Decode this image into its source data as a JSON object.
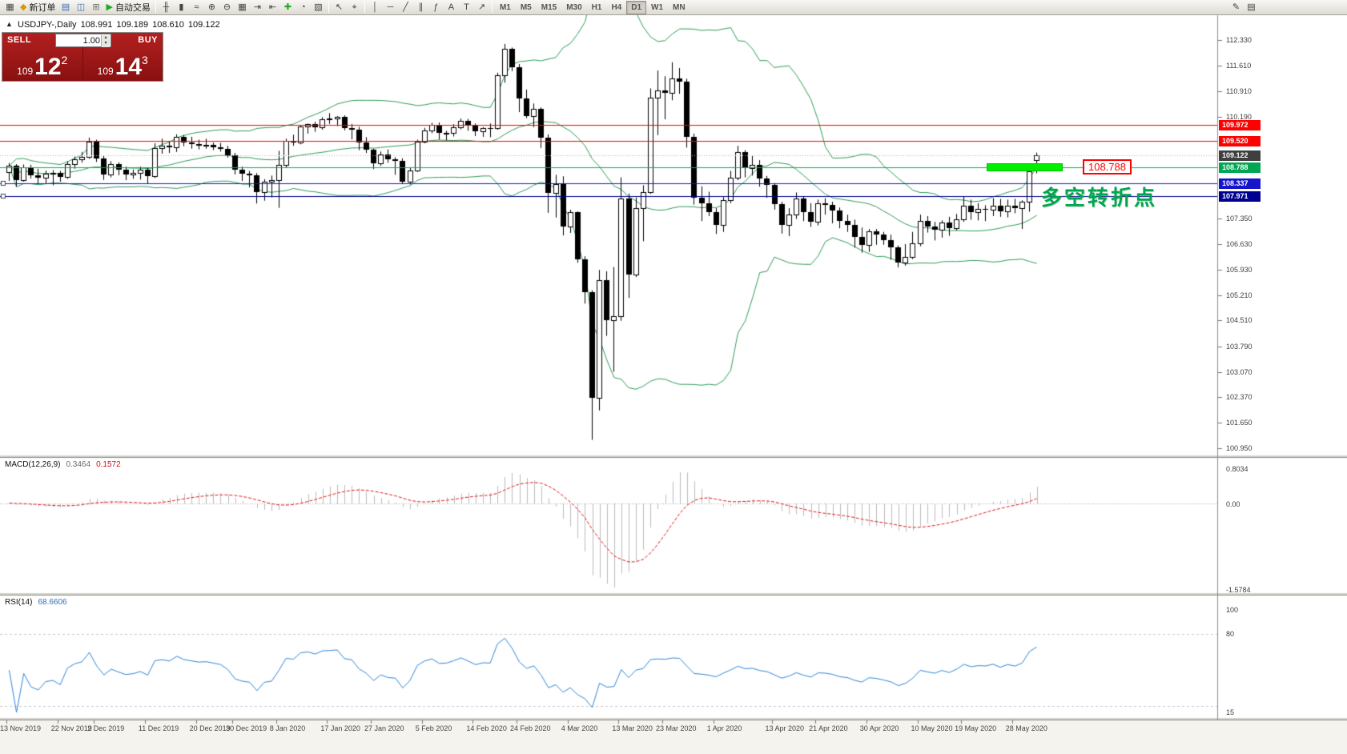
{
  "toolbar": {
    "left": [
      {
        "name": "new-chart",
        "glyph": "▦"
      },
      {
        "name": "new-order",
        "glyph": "◆",
        "color": "#d99a00",
        "label": "新订单"
      },
      {
        "name": "market-watch",
        "glyph": "▤",
        "color": "#3b6fb5"
      },
      {
        "name": "data-window",
        "glyph": "◫",
        "color": "#3b6fb5"
      },
      {
        "name": "navigator",
        "glyph": "⊞",
        "color": "#6d6d6d"
      },
      {
        "name": "auto-trading",
        "glyph": "▶",
        "color": "#1faa1f",
        "label": "自动交易"
      }
    ],
    "chart": [
      {
        "name": "bar-chart",
        "glyph": "╫"
      },
      {
        "name": "candlestick-chart",
        "glyph": "▮"
      },
      {
        "name": "line-chart",
        "glyph": "≈"
      },
      {
        "name": "zoom-in",
        "glyph": "⊕"
      },
      {
        "name": "zoom-out",
        "glyph": "⊖"
      },
      {
        "name": "tile-windows",
        "glyph": "▦"
      },
      {
        "name": "auto-scroll",
        "glyph": "⇥"
      },
      {
        "name": "chart-shift",
        "glyph": "⇤"
      },
      {
        "name": "indicators",
        "glyph": "✚",
        "color": "#1faa1f"
      },
      {
        "name": "periods",
        "glyph": "◔"
      },
      {
        "name": "templates",
        "glyph": "▧"
      }
    ],
    "cursor_tools": [
      {
        "name": "cursor",
        "glyph": "↖"
      },
      {
        "name": "crosshair",
        "glyph": "⌖"
      }
    ],
    "draw_tools": [
      {
        "name": "vertical-line",
        "glyph": "│"
      },
      {
        "name": "horizontal-line",
        "glyph": "─"
      },
      {
        "name": "trendline",
        "glyph": "╱"
      },
      {
        "name": "equidistant-channel",
        "glyph": "∥"
      },
      {
        "name": "fibonacci",
        "glyph": "ƒ"
      },
      {
        "name": "text",
        "glyph": "A"
      },
      {
        "name": "text-label",
        "glyph": "T"
      },
      {
        "name": "arrows",
        "glyph": "↗"
      }
    ],
    "timeframes": [
      "M1",
      "M5",
      "M15",
      "M30",
      "H1",
      "H4",
      "D1",
      "W1",
      "MN"
    ],
    "active_timeframe": "D1",
    "right": [
      {
        "name": "pencil",
        "glyph": "✎"
      },
      {
        "name": "notes",
        "glyph": "▤"
      }
    ]
  },
  "chart_header": {
    "icon": "▲",
    "symbol_period": "USDJPY-,Daily",
    "open": "108.991",
    "high": "109.189",
    "low": "108.610",
    "close": "109.122"
  },
  "trade_panel": {
    "sell_label": "SELL",
    "buy_label": "BUY",
    "volume": "1.00",
    "spinner_up": "▴",
    "spinner_down": "▾",
    "sell_price_small": "109",
    "sell_price_big": "12",
    "sell_price_sup": "2",
    "buy_price_small": "109",
    "buy_price_big": "14",
    "buy_price_sup": "3"
  },
  "objects": {
    "hlines": [
      {
        "price": 109.972,
        "color": "#ff0000",
        "tag_bg": "#ff0000"
      },
      {
        "price": 109.52,
        "color": "#ff0000",
        "tag_bg": "#ff0000"
      },
      {
        "price": 108.788,
        "color": "#00b14f",
        "tag_bg": "#00a651"
      },
      {
        "price": 108.337,
        "color": "#1515cc",
        "tag_bg": "#1515cc",
        "handles": true
      },
      {
        "price": 107.971,
        "color": "#000090",
        "tag_bg": "#000090",
        "handles": true
      }
    ],
    "highlight_bar": {
      "price": 108.788,
      "color": "#00ef00"
    },
    "price_label": {
      "text": "108.788",
      "color": "#ff0000"
    },
    "annotation": {
      "text": "多空转折点",
      "color": "#00a651"
    }
  },
  "price_scale": {
    "current": {
      "text": "109.122",
      "bg": "#3f3f3f"
    },
    "ticks": [
      "112.330",
      "111.610",
      "110.910",
      "110.190",
      "107.350",
      "106.630",
      "105.930",
      "105.210",
      "104.510",
      "103.790",
      "103.070",
      "102.370",
      "101.650",
      "100.950"
    ]
  },
  "indicators": {
    "macd": {
      "label": "MACD(12,26,9)",
      "value_main": "0.3464",
      "value_signal": "0.1572",
      "scale_max": "0.8034",
      "scale_zero": "0.00",
      "scale_min": "-1.5784",
      "fast": 12,
      "slow": 26,
      "signal": 9
    },
    "rsi": {
      "label": "RSI(14)",
      "value": "68.6606",
      "period": 14,
      "scale_labels": [
        "100",
        "80",
        "15"
      ],
      "scale_max": 100,
      "scale_min": 15,
      "levels": [
        80,
        20
      ]
    }
  },
  "chart_data": {
    "type": "candlestick",
    "title": "USDJPY-,Daily",
    "symbol": "USDJPY",
    "timeframe": "Daily",
    "bollinger": {
      "period": 20,
      "deviation": 2
    },
    "date_labels": [
      {
        "text": "13 Nov 2019",
        "index": 0
      },
      {
        "text": "22 Nov 2019",
        "index": 7
      },
      {
        "text": "2 Dec 2019",
        "index": 12
      },
      {
        "text": "11 Dec 2019",
        "index": 19
      },
      {
        "text": "20 Dec 2019",
        "index": 26
      },
      {
        "text": "30 Dec 2019",
        "index": 31
      },
      {
        "text": "8 Jan 2020",
        "index": 37
      },
      {
        "text": "17 Jan 2020",
        "index": 44
      },
      {
        "text": "27 Jan 2020",
        "index": 50
      },
      {
        "text": "5 Feb 2020",
        "index": 57
      },
      {
        "text": "14 Feb 2020",
        "index": 64
      },
      {
        "text": "24 Feb 2020",
        "index": 70
      },
      {
        "text": "4 Mar 2020",
        "index": 77
      },
      {
        "text": "13 Mar 2020",
        "index": 84
      },
      {
        "text": "23 Mar 2020",
        "index": 90
      },
      {
        "text": "1 Apr 2020",
        "index": 97
      },
      {
        "text": "13 Apr 2020",
        "index": 105
      },
      {
        "text": "21 Apr 2020",
        "index": 111
      },
      {
        "text": "30 Apr 2020",
        "index": 118
      },
      {
        "text": "10 May 2020",
        "index": 125
      },
      {
        "text": "19 May 2020",
        "index": 131
      },
      {
        "text": "28 May 2020",
        "index": 138
      }
    ],
    "candles": [
      [
        108.65,
        108.9,
        108.4,
        108.82
      ],
      [
        108.82,
        108.87,
        108.24,
        108.43
      ],
      [
        108.43,
        108.86,
        108.38,
        108.78
      ],
      [
        108.78,
        108.85,
        108.47,
        108.55
      ],
      [
        108.55,
        108.74,
        108.32,
        108.48
      ],
      [
        108.48,
        108.69,
        108.33,
        108.6
      ],
      [
        108.6,
        108.7,
        108.28,
        108.62
      ],
      [
        108.62,
        108.68,
        108.38,
        108.51
      ],
      [
        108.51,
        108.95,
        108.46,
        108.88
      ],
      [
        108.88,
        109.08,
        108.74,
        109.01
      ],
      [
        109.01,
        109.21,
        108.91,
        109.08
      ],
      [
        109.08,
        109.61,
        109.02,
        109.49
      ],
      [
        109.49,
        109.55,
        108.93,
        109.02
      ],
      [
        109.02,
        109.1,
        108.43,
        108.57
      ],
      [
        108.57,
        108.95,
        108.5,
        108.88
      ],
      [
        108.88,
        108.92,
        108.56,
        108.72
      ],
      [
        108.72,
        108.8,
        108.42,
        108.58
      ],
      [
        108.58,
        108.72,
        108.46,
        108.62
      ],
      [
        108.62,
        108.8,
        108.44,
        108.72
      ],
      [
        108.72,
        108.78,
        108.32,
        108.54
      ],
      [
        108.54,
        109.45,
        108.48,
        109.32
      ],
      [
        109.32,
        109.58,
        109.16,
        109.38
      ],
      [
        109.38,
        109.5,
        109.18,
        109.33
      ],
      [
        109.33,
        109.7,
        109.21,
        109.62
      ],
      [
        109.62,
        109.68,
        109.37,
        109.48
      ],
      [
        109.48,
        109.63,
        109.3,
        109.43
      ],
      [
        109.43,
        109.55,
        109.28,
        109.38
      ],
      [
        109.38,
        109.58,
        109.3,
        109.4
      ],
      [
        109.4,
        109.47,
        109.26,
        109.35
      ],
      [
        109.35,
        109.46,
        109.22,
        109.3
      ],
      [
        109.3,
        109.38,
        109.05,
        109.12
      ],
      [
        109.12,
        109.18,
        108.58,
        108.72
      ],
      [
        108.72,
        108.8,
        108.4,
        108.61
      ],
      [
        108.61,
        108.68,
        108.22,
        108.56
      ],
      [
        108.56,
        108.62,
        107.77,
        108.09
      ],
      [
        108.09,
        108.45,
        107.85,
        108.38
      ],
      [
        108.38,
        108.55,
        107.94,
        108.42
      ],
      [
        108.42,
        109.24,
        107.65,
        108.85
      ],
      [
        108.85,
        109.58,
        108.76,
        109.52
      ],
      [
        109.52,
        109.69,
        109.38,
        109.48
      ],
      [
        109.48,
        109.95,
        109.42,
        109.92
      ],
      [
        109.92,
        110.0,
        109.72,
        109.98
      ],
      [
        109.98,
        110.05,
        109.77,
        109.9
      ],
      [
        109.9,
        110.18,
        109.83,
        110.12
      ],
      [
        110.12,
        110.29,
        109.99,
        110.14
      ],
      [
        110.14,
        110.21,
        109.93,
        110.18
      ],
      [
        110.18,
        110.23,
        109.81,
        109.88
      ],
      [
        109.88,
        109.99,
        109.56,
        109.84
      ],
      [
        109.84,
        109.91,
        109.26,
        109.48
      ],
      [
        109.48,
        109.62,
        109.18,
        109.28
      ],
      [
        109.28,
        109.3,
        108.73,
        108.9
      ],
      [
        108.9,
        109.22,
        108.82,
        109.14
      ],
      [
        109.14,
        109.28,
        108.91,
        109.0
      ],
      [
        109.0,
        109.06,
        108.57,
        108.97
      ],
      [
        108.97,
        109.03,
        108.31,
        108.38
      ],
      [
        108.38,
        108.78,
        108.3,
        108.69
      ],
      [
        108.69,
        109.55,
        108.65,
        109.5
      ],
      [
        109.5,
        109.88,
        109.45,
        109.81
      ],
      [
        109.81,
        110.02,
        109.73,
        109.96
      ],
      [
        109.96,
        110.03,
        109.55,
        109.73
      ],
      [
        109.73,
        109.8,
        109.53,
        109.75
      ],
      [
        109.75,
        109.98,
        109.64,
        109.9
      ],
      [
        109.9,
        110.14,
        109.84,
        110.08
      ],
      [
        110.08,
        110.13,
        109.8,
        109.94
      ],
      [
        109.94,
        110.0,
        109.65,
        109.78
      ],
      [
        109.78,
        109.9,
        109.63,
        109.88
      ],
      [
        109.88,
        110.0,
        109.62,
        109.87
      ],
      [
        109.87,
        111.42,
        109.83,
        111.34
      ],
      [
        111.34,
        112.22,
        111.14,
        112.08
      ],
      [
        112.08,
        112.12,
        111.46,
        111.58
      ],
      [
        111.58,
        111.66,
        110.32,
        110.7
      ],
      [
        110.7,
        110.95,
        110.15,
        110.2
      ],
      [
        110.2,
        110.56,
        109.9,
        110.42
      ],
      [
        110.42,
        110.45,
        109.32,
        109.6
      ],
      [
        109.6,
        109.7,
        107.51,
        108.07
      ],
      [
        108.07,
        108.57,
        107.38,
        108.32
      ],
      [
        108.32,
        108.53,
        106.88,
        107.13
      ],
      [
        107.13,
        107.6,
        106.95,
        107.52
      ],
      [
        107.52,
        107.55,
        106.12,
        106.22
      ],
      [
        106.22,
        106.3,
        104.98,
        105.3
      ],
      [
        105.3,
        105.35,
        101.18,
        102.36
      ],
      [
        102.36,
        105.92,
        102.0,
        105.64
      ],
      [
        105.64,
        105.88,
        104.08,
        104.52
      ],
      [
        104.52,
        106.0,
        103.08,
        104.62
      ],
      [
        104.62,
        108.5,
        104.5,
        107.9
      ],
      [
        107.9,
        108.05,
        105.14,
        105.8
      ],
      [
        105.8,
        107.94,
        105.72,
        107.65
      ],
      [
        107.65,
        108.28,
        106.72,
        108.08
      ],
      [
        108.08,
        110.98,
        108.04,
        110.72
      ],
      [
        110.72,
        111.48,
        109.68,
        110.93
      ],
      [
        110.93,
        111.32,
        110.12,
        110.85
      ],
      [
        110.85,
        111.71,
        110.65,
        111.25
      ],
      [
        111.25,
        111.55,
        110.83,
        111.18
      ],
      [
        111.18,
        111.25,
        109.33,
        109.62
      ],
      [
        109.62,
        109.72,
        107.74,
        107.94
      ],
      [
        107.94,
        108.25,
        107.28,
        107.78
      ],
      [
        107.78,
        108.1,
        107.42,
        107.54
      ],
      [
        107.54,
        107.64,
        106.92,
        107.18
      ],
      [
        107.18,
        107.95,
        106.98,
        107.86
      ],
      [
        107.86,
        108.68,
        107.78,
        108.48
      ],
      [
        108.48,
        109.38,
        108.42,
        109.2
      ],
      [
        109.2,
        109.26,
        108.5,
        108.76
      ],
      [
        108.76,
        109.1,
        108.55,
        108.84
      ],
      [
        108.84,
        108.98,
        108.24,
        108.46
      ],
      [
        108.46,
        108.54,
        107.93,
        108.28
      ],
      [
        108.28,
        108.34,
        107.6,
        107.76
      ],
      [
        107.76,
        107.82,
        106.93,
        107.18
      ],
      [
        107.18,
        107.64,
        106.86,
        107.46
      ],
      [
        107.46,
        108.08,
        107.34,
        107.92
      ],
      [
        107.92,
        107.98,
        107.28,
        107.54
      ],
      [
        107.54,
        107.78,
        107.12,
        107.26
      ],
      [
        107.26,
        107.88,
        107.16,
        107.78
      ],
      [
        107.78,
        107.92,
        107.46,
        107.74
      ],
      [
        107.74,
        107.82,
        107.22,
        107.58
      ],
      [
        107.58,
        107.66,
        107.08,
        107.28
      ],
      [
        107.28,
        107.46,
        106.98,
        107.18
      ],
      [
        107.18,
        107.32,
        106.54,
        106.84
      ],
      [
        106.84,
        107.1,
        106.4,
        106.62
      ],
      [
        106.62,
        107.06,
        106.42,
        107.0
      ],
      [
        107.0,
        107.06,
        106.62,
        106.91
      ],
      [
        106.91,
        106.98,
        106.62,
        106.74
      ],
      [
        106.74,
        106.9,
        106.2,
        106.54
      ],
      [
        106.54,
        106.6,
        105.99,
        106.12
      ],
      [
        106.12,
        106.64,
        106.04,
        106.28
      ],
      [
        106.28,
        106.98,
        106.22,
        106.65
      ],
      [
        106.65,
        107.46,
        106.58,
        107.28
      ],
      [
        107.28,
        107.42,
        106.96,
        107.14
      ],
      [
        107.14,
        107.26,
        106.74,
        107.03
      ],
      [
        107.03,
        107.3,
        106.82,
        107.24
      ],
      [
        107.24,
        107.4,
        106.87,
        107.08
      ],
      [
        107.08,
        107.48,
        107.02,
        107.32
      ],
      [
        107.32,
        107.96,
        107.26,
        107.7
      ],
      [
        107.7,
        107.88,
        107.32,
        107.54
      ],
      [
        107.54,
        107.78,
        107.3,
        107.62
      ],
      [
        107.62,
        107.72,
        107.28,
        107.6
      ],
      [
        107.6,
        107.92,
        107.42,
        107.72
      ],
      [
        107.72,
        107.9,
        107.4,
        107.55
      ],
      [
        107.55,
        107.88,
        107.38,
        107.72
      ],
      [
        107.72,
        107.9,
        107.5,
        107.64
      ],
      [
        107.64,
        107.86,
        107.06,
        107.82
      ],
      [
        107.82,
        108.85,
        107.54,
        108.68
      ],
      [
        108.991,
        109.189,
        108.61,
        109.122
      ]
    ]
  }
}
